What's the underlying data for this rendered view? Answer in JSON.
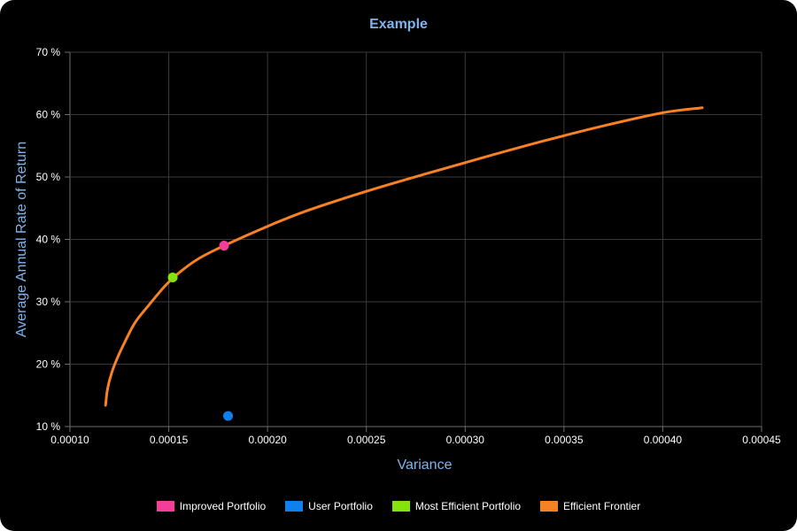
{
  "chart_data": {
    "type": "line",
    "title": "Example",
    "xlabel": "Variance",
    "ylabel": "Average Annual Rate of Return",
    "xlim": [
      0.0001,
      0.00045
    ],
    "ylim": [
      10,
      70
    ],
    "x_ticks": [
      "0.00010",
      "0.00015",
      "0.00020",
      "0.00025",
      "0.00030",
      "0.00035",
      "0.00040",
      "0.00045"
    ],
    "y_ticks": [
      "10 %",
      "20 %",
      "30 %",
      "40 %",
      "50 %",
      "60 %",
      "70 %"
    ],
    "grid": true,
    "legend_position": "bottom",
    "series": [
      {
        "name": "Improved Portfolio",
        "type": "scatter",
        "color": "#f43c9b",
        "points": [
          {
            "x": 0.000178,
            "y": 39.0
          }
        ]
      },
      {
        "name": "User Portfolio",
        "type": "scatter",
        "color": "#1080ef",
        "points": [
          {
            "x": 0.00018,
            "y": 11.7
          }
        ]
      },
      {
        "name": "Most Efficient Portfolio",
        "type": "scatter",
        "color": "#84e30c",
        "points": [
          {
            "x": 0.000152,
            "y": 33.9
          }
        ]
      },
      {
        "name": "Efficient Frontier",
        "type": "line",
        "color": "#f88124",
        "points": [
          {
            "x": 0.000118,
            "y": 13.4
          },
          {
            "x": 0.000119,
            "y": 16.0
          },
          {
            "x": 0.000121,
            "y": 18.5
          },
          {
            "x": 0.000124,
            "y": 21.0
          },
          {
            "x": 0.000128,
            "y": 23.7
          },
          {
            "x": 0.000133,
            "y": 26.7
          },
          {
            "x": 0.00014,
            "y": 29.5
          },
          {
            "x": 0.000148,
            "y": 32.5
          },
          {
            "x": 0.000155,
            "y": 34.6
          },
          {
            "x": 0.000165,
            "y": 36.9
          },
          {
            "x": 0.000178,
            "y": 39.0
          },
          {
            "x": 0.0002,
            "y": 42.1
          },
          {
            "x": 0.00022,
            "y": 44.6
          },
          {
            "x": 0.00025,
            "y": 47.7
          },
          {
            "x": 0.00028,
            "y": 50.5
          },
          {
            "x": 0.00031,
            "y": 53.2
          },
          {
            "x": 0.00034,
            "y": 55.8
          },
          {
            "x": 0.00037,
            "y": 58.2
          },
          {
            "x": 0.0004,
            "y": 60.3
          },
          {
            "x": 0.00042,
            "y": 61.1
          }
        ]
      }
    ]
  }
}
